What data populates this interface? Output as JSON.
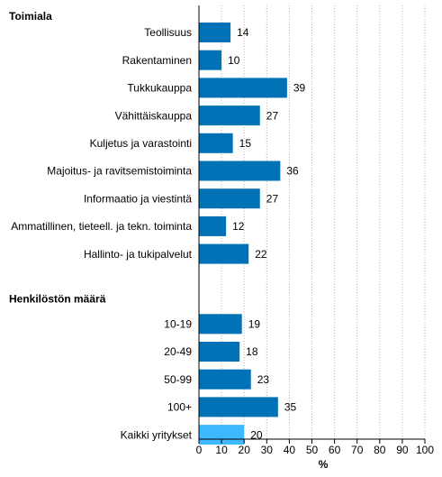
{
  "chart_data": {
    "type": "bar",
    "orientation": "horizontal",
    "groups": [
      {
        "title": "Toimiala",
        "categories": [
          "Teollisuus",
          "Rakentaminen",
          "Tukkukauppa",
          "Vähittäiskauppa",
          "Kuljetus ja varastointi",
          "Majoitus- ja ravitsemistoiminta",
          "Informaatio ja viestintä",
          "Ammatillinen, tieteell. ja tekn. toiminta",
          "Hallinto- ja tukipalvelut"
        ],
        "values": [
          14,
          10,
          39,
          27,
          15,
          36,
          27,
          12,
          22
        ]
      },
      {
        "title": "Henkilöstön määrä",
        "categories": [
          "10-19",
          "20-49",
          "50-99",
          "100+"
        ],
        "values": [
          19,
          18,
          23,
          35
        ]
      },
      {
        "title": "",
        "categories": [
          "Kaikki yritykset"
        ],
        "values": [
          20
        ],
        "highlight": true
      }
    ],
    "xlabel": "%",
    "xlim": [
      0,
      100
    ],
    "xticks": [
      0,
      10,
      20,
      30,
      40,
      50,
      60,
      70,
      80,
      90,
      100
    ],
    "grid": "vertical dotted",
    "colors": {
      "bar": "#0072b5",
      "highlight": "#3db9ff",
      "grid": "#b4b4b4",
      "axis": "#000000"
    }
  }
}
